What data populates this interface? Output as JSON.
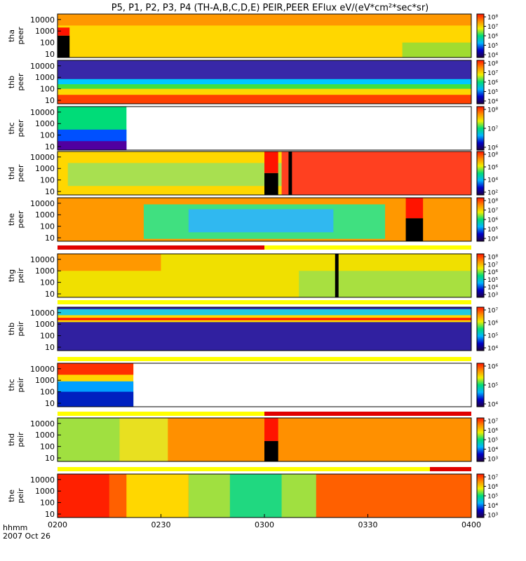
{
  "chart_data": {
    "type": "heatmap",
    "title": "P5, P1, P2, P3, P4 (TH-A,B,C,D,E) PEIR,PEER EFlux eV/(eV*cm²*sec*sr)",
    "x_axis": {
      "label_top": "hhmm",
      "label_bottom": "2007 Oct 26",
      "range": [
        "0200",
        "0400"
      ],
      "ticks": [
        "0200",
        "0230",
        "0300",
        "0330",
        "0400"
      ]
    },
    "y_axis": {
      "scale": "log",
      "range": [
        5,
        30000
      ],
      "ticks": [
        "10",
        "100",
        "1000",
        "10000"
      ]
    },
    "colorbar": {
      "colors": [
        "#200040",
        "#0000c8",
        "#00b4ff",
        "#00dc78",
        "#f0f000",
        "#ff8c00",
        "#ff1400"
      ]
    },
    "panels": [
      {
        "label": [
          "tha",
          "peer"
        ],
        "colorbar_ticks": [
          "10⁴",
          "10⁵",
          "10⁶",
          "10⁷",
          "10⁸"
        ],
        "background": "#ffd700",
        "blocks": [
          {
            "t": [
              0,
              120
            ],
            "e": [
              3000,
              30000
            ],
            "color": "#ff9800"
          },
          {
            "t": [
              0,
              3.5
            ],
            "e": [
              5,
              400
            ],
            "color": "#000000"
          },
          {
            "t": [
              0,
              3.5
            ],
            "e": [
              400,
              2000
            ],
            "color": "#ff1400"
          },
          {
            "t": [
              100,
              120
            ],
            "e": [
              5,
              100
            ],
            "color": "#a0dc30"
          }
        ]
      },
      {
        "label": [
          "thb",
          "peer"
        ],
        "colorbar_ticks": [
          "10⁴",
          "10⁵",
          "10⁶",
          "10⁷",
          "10⁸"
        ],
        "background": "#3828a8",
        "blocks": [
          {
            "t": [
              0,
              120
            ],
            "e": [
              100,
              700
            ],
            "color": "#00c8ff"
          },
          {
            "t": [
              0,
              120
            ],
            "e": [
              30,
              250
            ],
            "color": "#40e040"
          },
          {
            "t": [
              0,
              120
            ],
            "e": [
              5,
              100
            ],
            "color": "#ffd700"
          },
          {
            "t": [
              0,
              120
            ],
            "e": [
              5,
              30
            ],
            "color": "#ff4000"
          }
        ]
      },
      {
        "label": [
          "thc",
          "peer"
        ],
        "colorbar_ticks": [
          "10⁶",
          "10⁷",
          "10⁸"
        ],
        "background": "#ffffff",
        "blocks": [
          {
            "t": [
              0,
              20
            ],
            "e": [
              5,
              30000
            ],
            "color": "#00dc78"
          },
          {
            "t": [
              0,
              20
            ],
            "e": [
              5,
              300
            ],
            "color": "#0050ff"
          },
          {
            "t": [
              0,
              20
            ],
            "e": [
              5,
              30
            ],
            "color": "#5000a0"
          }
        ]
      },
      {
        "label": [
          "thd",
          "peer"
        ],
        "colorbar_ticks": [
          "10²",
          "10⁴",
          "10⁶",
          "10⁸"
        ],
        "background": "#ffd700",
        "blocks": [
          {
            "t": [
              3,
              65
            ],
            "e": [
              30,
              3000
            ],
            "color": "#a8e050"
          },
          {
            "t": [
              65,
              120
            ],
            "e": [
              5,
              30000
            ],
            "color": "#ff4020"
          },
          {
            "t": [
              60,
              64
            ],
            "e": [
              5,
              400
            ],
            "color": "#000000"
          },
          {
            "t": [
              60,
              64
            ],
            "e": [
              400,
              30000
            ],
            "color": "#ff1400"
          },
          {
            "t": [
              67,
              68
            ],
            "e": [
              5,
              30000
            ],
            "color": "#000000"
          }
        ]
      },
      {
        "label": [
          "the",
          "peer"
        ],
        "colorbar_ticks": [
          "10⁴",
          "10⁵",
          "10⁶",
          "10⁷",
          "10⁸"
        ],
        "background": "#ff9800",
        "blocks": [
          {
            "t": [
              25,
              95
            ],
            "e": [
              8,
              8000
            ],
            "color": "#40e080"
          },
          {
            "t": [
              38,
              80
            ],
            "e": [
              30,
              3000
            ],
            "color": "#30b8f0"
          },
          {
            "t": [
              101,
              106
            ],
            "e": [
              5,
              500
            ],
            "color": "#000000"
          },
          {
            "t": [
              101,
              106
            ],
            "e": [
              500,
              30000
            ],
            "color": "#ff1400"
          }
        ]
      },
      {
        "label": [
          "thg",
          "peir"
        ],
        "colorbar_ticks": [
          "10³",
          "10⁴",
          "10⁵",
          "10⁶",
          "10⁷",
          "10⁸"
        ],
        "background": "#f0e000",
        "blocks": [
          {
            "t": [
              0,
              30
            ],
            "e": [
              1000,
              30000
            ],
            "color": "#ff9800"
          },
          {
            "t": [
              70,
              120
            ],
            "e": [
              5,
              1000
            ],
            "color": "#a8e040"
          },
          {
            "t": [
              80.5,
              81.5
            ],
            "e": [
              5,
              30000
            ],
            "color": "#000000"
          }
        ]
      },
      {
        "label": [
          "thb",
          "peir"
        ],
        "colorbar_ticks": [
          "10⁴",
          "10⁵",
          "10⁶",
          "10⁷"
        ],
        "background": "#3020a0",
        "blocks": [
          {
            "t": [
              0,
              120
            ],
            "e": [
              2500,
              20000
            ],
            "color": "#20c8e0"
          },
          {
            "t": [
              0,
              120
            ],
            "e": [
              1500,
              6000
            ],
            "color": "#ffd700"
          },
          {
            "t": [
              0,
              120
            ],
            "e": [
              2200,
              3500
            ],
            "color": "#ff1400"
          }
        ]
      },
      {
        "label": [
          "thc",
          "peir"
        ],
        "colorbar_ticks": [
          "10⁴",
          "10⁵",
          "10⁶"
        ],
        "background": "#ffffff",
        "blocks": [
          {
            "t": [
              0,
              22
            ],
            "e": [
              5,
              30000
            ],
            "color": "#ffd700"
          },
          {
            "t": [
              0,
              22
            ],
            "e": [
              3000,
              30000
            ],
            "color": "#ff3000"
          },
          {
            "t": [
              0,
              22
            ],
            "e": [
              5,
              800
            ],
            "color": "#00a0ff"
          },
          {
            "t": [
              0,
              22
            ],
            "e": [
              5,
              100
            ],
            "color": "#0020c0"
          }
        ]
      },
      {
        "label": [
          "thd",
          "peir"
        ],
        "colorbar_ticks": [
          "10³",
          "10⁴",
          "10⁵",
          "10⁶",
          "10⁷"
        ],
        "background": "#ff9000",
        "blocks": [
          {
            "t": [
              0,
              18
            ],
            "e": [
              5,
              30000
            ],
            "color": "#a0e040"
          },
          {
            "t": [
              18,
              32
            ],
            "e": [
              5,
              30000
            ],
            "color": "#e8e020"
          },
          {
            "t": [
              60,
              64
            ],
            "e": [
              5,
              300
            ],
            "color": "#000000"
          },
          {
            "t": [
              60,
              64
            ],
            "e": [
              300,
              30000
            ],
            "color": "#ff1400"
          }
        ]
      },
      {
        "label": [
          "the",
          "peir"
        ],
        "colorbar_ticks": [
          "10³",
          "10⁴",
          "10⁵",
          "10⁶",
          "10⁷"
        ],
        "background": "#ff6000",
        "blocks": [
          {
            "t": [
              0,
              15
            ],
            "e": [
              5,
              30000
            ],
            "color": "#ff2000"
          },
          {
            "t": [
              20,
              38
            ],
            "e": [
              5,
              30000
            ],
            "color": "#ffd700"
          },
          {
            "t": [
              38,
              75
            ],
            "e": [
              5,
              30000
            ],
            "color": "#a0e040"
          },
          {
            "t": [
              50,
              65
            ],
            "e": [
              5,
              30000
            ],
            "color": "#20d880"
          }
        ]
      }
    ],
    "status_bars": [
      {
        "segments": [
          {
            "t": [
              0,
              60
            ],
            "color": "#e00000"
          },
          {
            "t": [
              60,
              120
            ],
            "color": "#ffff00"
          }
        ]
      },
      {
        "segments": [
          {
            "t": [
              0,
              120
            ],
            "color": "#ffff00"
          }
        ]
      },
      {
        "segments": [
          {
            "t": [
              0,
              120
            ],
            "color": "#ffff00"
          }
        ]
      },
      {
        "segments": [
          {
            "t": [
              0,
              60
            ],
            "color": "#ffff00"
          },
          {
            "t": [
              60,
              120
            ],
            "color": "#e00000"
          }
        ]
      },
      {
        "segments": [
          {
            "t": [
              0,
              108
            ],
            "color": "#ffff00"
          },
          {
            "t": [
              108,
              120
            ],
            "color": "#e00000"
          }
        ]
      }
    ]
  }
}
